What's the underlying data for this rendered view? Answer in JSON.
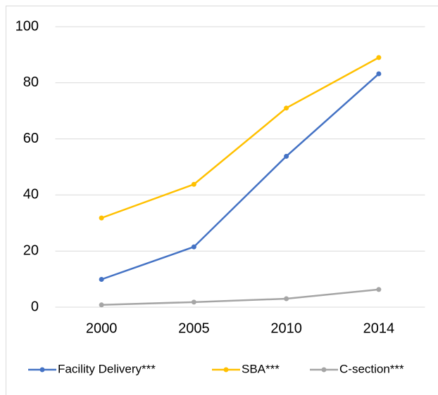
{
  "chart_data": {
    "type": "line",
    "categories": [
      "2000",
      "2005",
      "2010",
      "2014"
    ],
    "series": [
      {
        "name": "Facility Delivery***",
        "color": "#4472c4",
        "values": [
          9.9,
          21.5,
          53.8,
          83.2
        ]
      },
      {
        "name": "SBA***",
        "color": "#ffc000",
        "values": [
          31.8,
          43.8,
          71,
          89
        ]
      },
      {
        "name": "C-section***",
        "color": "#a5a5a5",
        "values": [
          0.8,
          1.8,
          3,
          6.3
        ]
      }
    ],
    "ylim": [
      0,
      100
    ],
    "yticks": [
      0,
      20,
      40,
      60,
      80,
      100
    ],
    "grid": true,
    "legend": "bottom"
  }
}
